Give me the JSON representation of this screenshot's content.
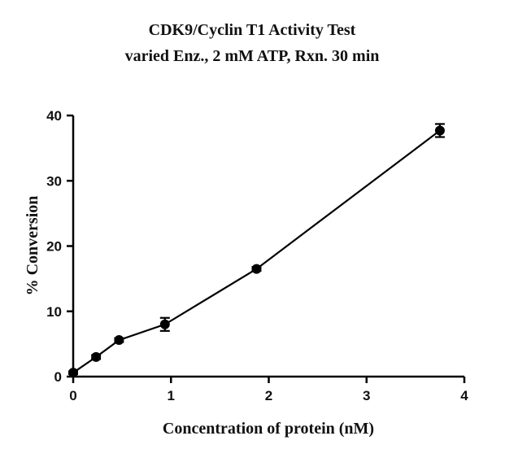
{
  "chart_data": {
    "type": "line",
    "title": "CDK9/Cyclin T1 Activity Test",
    "subtitle": "varied Enz., 2 mM ATP, Rxn. 30 min",
    "xlabel": "Concentration of protein (nM)",
    "ylabel": "% Conversion",
    "xlim": [
      0,
      4
    ],
    "ylim": [
      0,
      40
    ],
    "x_ticks": [
      0,
      1,
      2,
      3,
      4
    ],
    "y_ticks": [
      0,
      10,
      20,
      30,
      40
    ],
    "grid": false,
    "series": [
      {
        "name": "CDK9/Cyclin T1",
        "x": [
          0,
          0.234,
          0.469,
          0.938,
          1.875,
          3.75
        ],
        "values": [
          0.6,
          3.0,
          5.6,
          8.0,
          16.5,
          37.7
        ],
        "error": [
          0.2,
          0.3,
          0.3,
          1.0,
          0.3,
          1.0
        ]
      }
    ]
  }
}
